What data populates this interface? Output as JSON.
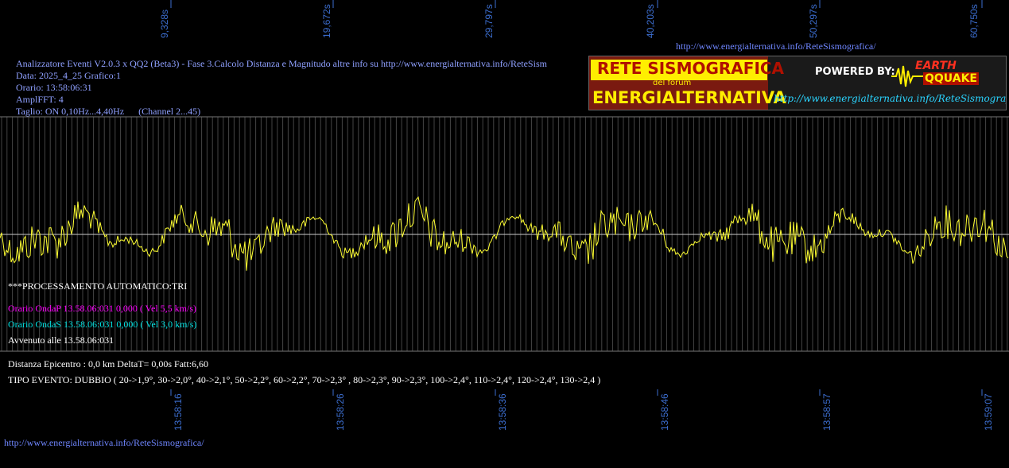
{
  "top_time_labels": [
    "9,328s",
    "19,672s",
    "29,797s",
    "40,203s",
    "50,297s",
    "60,750s"
  ],
  "bottom_time_labels": [
    "13:58:16",
    "13:58:26",
    "13:58:36",
    "13:58:46",
    "13:58:57",
    "13:59:07"
  ],
  "header_url": "http://www.energialternativa.info/ReteSismografica/",
  "info": {
    "line1": "Analizzatore Eventi V2.0.3 x QQ2 (Beta3) - Fase 3.Calcolo Distanza e Magnitudo altre info su http://www.energialternativa.info/ReteSism",
    "line2": "Data: 2025_4_25 Grafico:1",
    "line3": "Orario: 13:58:06:31",
    "line4": "AmplFFT: 4",
    "line5": "Taglio: ON 0,10Hz...4,40Hz      (Channel 2...45)"
  },
  "logo": {
    "title": "RETE SISMOGRAFICA",
    "subtitle": "del forum",
    "name": "ENERGIALTERNATIVA",
    "url": "http://www.energialternativa.info/ReteSismografica",
    "powered_by": "POWERED BY:",
    "brand_top": "EARTH",
    "brand_bottom": "QQUAKE"
  },
  "processing": {
    "status": "***PROCESSAMENTO AUTOMATICO:TRI",
    "onda_p": "Orario OndaP 13.58.06:031  0,000 ( Vel 5,5 km/s)",
    "onda_s": "Orario OndaS 13.58.06:031  0,000 ( Vel 3,0 km/s)",
    "avvenuto": "Avvenuto alle 13.58.06:031"
  },
  "summary": {
    "distanza": "Distanza Epicentro : 0,0 km DeltaT= 0,00s  Fatt:6,60",
    "tipo": "TIPO EVENTO: DUBBIO ( 20->1,9°, 30->2,0°, 40->2,1°, 50->2,2°, 60->2,2°, 70->2,3° , 80->2,3°, 90->2,3°, 100->2,4°, 110->2,4°, 120->2,4°, 130->2,4 )"
  },
  "footer_url": "http://www.energialternativa.info/ReteSismografica/",
  "colors": {
    "trace": "#ffff33",
    "grid": "#5a5a5a",
    "time_label": "#3c6ed0",
    "onda_p": "#ff00ff",
    "onda_s": "#00e0e0"
  }
}
